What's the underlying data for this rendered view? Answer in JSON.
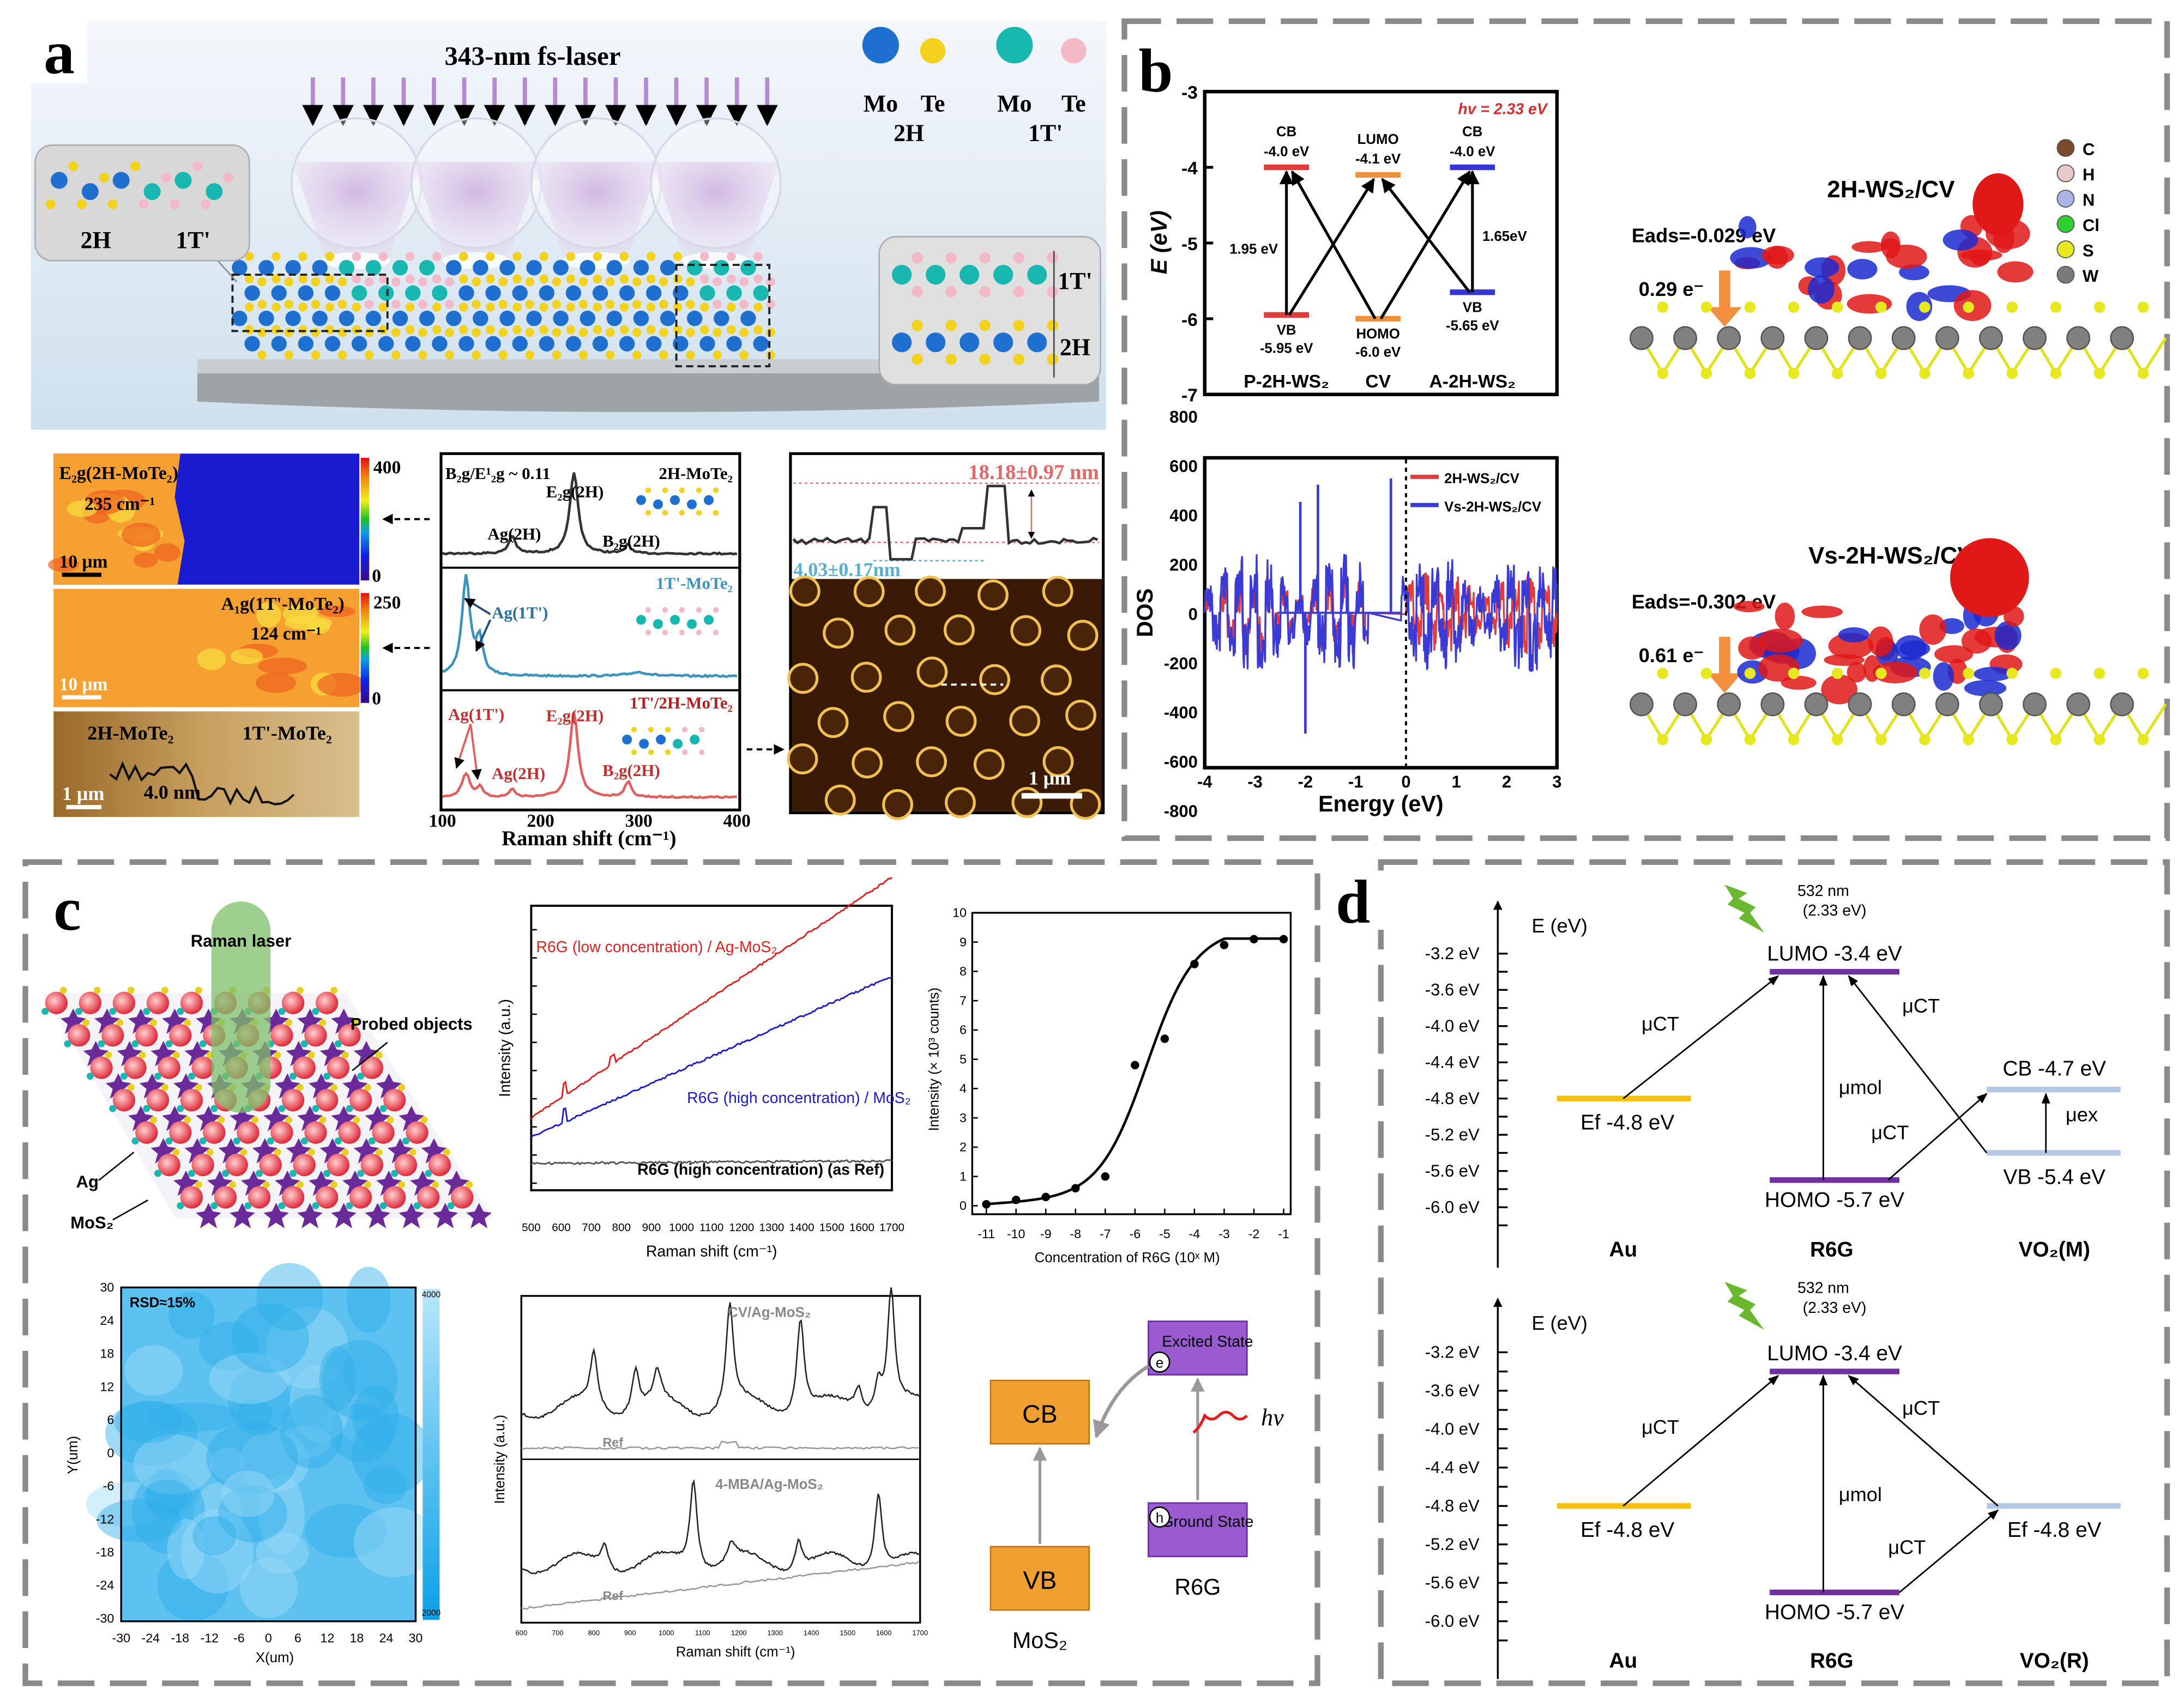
{
  "panel_a": {
    "label": "a",
    "laser_title": "343-nm fs-laser",
    "legend": [
      {
        "element": "Mo",
        "color": "#1f6fd1"
      },
      {
        "element": "Te",
        "color": "#f2d21c"
      },
      {
        "element": "Mo",
        "color": "#18b7b0"
      },
      {
        "element": "Te",
        "color": "#f3b9c6"
      }
    ],
    "legend_phase_1": "2H",
    "legend_phase_2": "1T'",
    "inset_left": {
      "left": "2H",
      "right": "1T'"
    },
    "inset_right": {
      "top": "1T'",
      "bottom": "2H"
    },
    "map_e2g": {
      "title": "E₂g(2H-MoTe₂)",
      "wavenumber": "235 cm⁻¹",
      "scale": "10 μm",
      "cbar_max": "400",
      "cbar_min": "0"
    },
    "map_a1g": {
      "title": "A₁g(1T'-MoTe₂)",
      "wavenumber": "124 cm⁻¹",
      "scale": "10 μm",
      "cbar_max": "250",
      "cbar_min": "0"
    },
    "afm_strip": {
      "left": "2H-MoTe₂",
      "right": "1T'-MoTe₂",
      "step": "4.0 nm",
      "scale": "1 μm"
    },
    "raman": {
      "ratio": "B₂g/E¹₂g ~ 0.11",
      "xlabel": "Raman shift (cm⁻¹)",
      "xticks": [
        "100",
        "200",
        "300",
        "400"
      ],
      "spectra": [
        {
          "name": "2H-MoTe₂",
          "color": "#333333",
          "peak_labels": [
            "Ag(2H)",
            "E₂g(2H)",
            "B₂g(2H)"
          ]
        },
        {
          "name": "1T'-MoTe₂",
          "color": "#3c93bd",
          "peak_labels": [
            "Ag(1T')"
          ]
        },
        {
          "name": "1T'/2H-MoTe₂",
          "color": "#e06060",
          "peak_labels": [
            "Ag(1T')",
            "Ag(2H)",
            "E₂g(2H)",
            "B₂g(2H)"
          ]
        }
      ]
    },
    "afm_profile": {
      "height_top": "18.18±0.97 nm",
      "height_bottom": "4.03±0.17nm",
      "scale": "1 μm"
    }
  },
  "panel_b": {
    "label": "b",
    "energy": {
      "hv": "hv = 2.33 eV",
      "ylabel": "E (eV)",
      "yticks": [
        "-3",
        "-4",
        "-5",
        "-6",
        "-7"
      ],
      "columns": [
        {
          "name": "P-2H-WS₂",
          "upper": "CB",
          "upper_value": "-4.0 eV",
          "lower": "VB",
          "lower_value": "-5.95 eV",
          "gap": "1.95 eV",
          "color": "#e23b3b"
        },
        {
          "name": "CV",
          "upper": "LUMO",
          "upper_value": "-4.1 eV",
          "lower": "HOMO",
          "lower_value": "-6.0 eV",
          "color": "#f0913a"
        },
        {
          "name": "A-2H-WS₂",
          "upper": "CB",
          "upper_value": "-4.0 eV",
          "lower": "VB",
          "lower_value": "-5.65 eV",
          "gap": "1.65eV",
          "color": "#3535d8"
        }
      ]
    },
    "structures": [
      {
        "title": "2H-WS₂/CV",
        "eads": "Eads=-0.029 eV",
        "charge": "0.29 e⁻"
      },
      {
        "title": "Vs-2H-WS₂/CV",
        "eads": "Eads=-0.302 eV",
        "charge": "0.61 e⁻"
      }
    ],
    "atom_legend": [
      {
        "element": "C",
        "color": "#7a4a2a"
      },
      {
        "element": "H",
        "color": "#e8c9c9"
      },
      {
        "element": "N",
        "color": "#aab4e6"
      },
      {
        "element": "Cl",
        "color": "#2fcf2f"
      },
      {
        "element": "S",
        "color": "#e8e820"
      },
      {
        "element": "W",
        "color": "#7a7a7a"
      }
    ]
  },
  "panel_c": {
    "label": "c",
    "schematic": {
      "laser": "Raman laser",
      "probed": "Probed objects",
      "ag": "Ag",
      "mos2": "MoS₂"
    },
    "scheme": {
      "cb": "CB",
      "vb": "VB",
      "mos2": "MoS₂",
      "excited": "Excited State",
      "ground": "Ground State",
      "r6g": "R6G",
      "hv": "hv",
      "e": "e",
      "h": "h"
    }
  },
  "panel_d": {
    "label": "d",
    "diagrams": [
      {
        "ylabel": "E (eV)",
        "laser": "532 nm",
        "laser_ev": "(2.33 eV)",
        "yticks": [
          "-3.2 eV",
          "-3.6 eV",
          "-4.0 eV",
          "-4.4 eV",
          "-4.8 eV",
          "-5.2 eV",
          "-5.6 eV",
          "-6.0 eV"
        ],
        "lumo": "LUMO -3.4 eV",
        "homo": "HOMO -5.7 eV",
        "au": "Ef -4.8 eV",
        "right_top": "CB -4.7 eV",
        "right_bottom": "VB -5.4 eV",
        "mu_ct": "μCT",
        "mu_mol": "μmol",
        "mu_ex": "μex",
        "categories": [
          "Au",
          "R6G",
          "VO₂(M)"
        ]
      },
      {
        "ylabel": "E (eV)",
        "laser": "532 nm",
        "laser_ev": "(2.33 eV)",
        "yticks": [
          "-3.2 eV",
          "-3.6 eV",
          "-4.0 eV",
          "-4.4 eV",
          "-4.8 eV",
          "-5.2 eV",
          "-5.6 eV",
          "-6.0 eV"
        ],
        "lumo": "LUMO -3.4 eV",
        "homo": "HOMO -5.7 eV",
        "au": "Ef -4.8 eV",
        "right_top": "Ef -4.8 eV",
        "mu_ct": "μCT",
        "mu_mol": "μmol",
        "categories": [
          "Au",
          "R6G",
          "VO₂(R)"
        ]
      }
    ]
  },
  "chart_data": [
    {
      "id": "b_energy_levels",
      "type": "diagram",
      "ylabel": "E (eV)",
      "ylim": [
        -7,
        -3
      ],
      "levels": [
        {
          "column": "P-2H-WS₂",
          "CB": -4.0,
          "VB": -5.95
        },
        {
          "column": "CV",
          "LUMO": -4.1,
          "HOMO": -6.0
        },
        {
          "column": "A-2H-WS₂",
          "CB": -4.0,
          "VB": -5.65
        }
      ]
    },
    {
      "id": "b_dos",
      "type": "line",
      "xlabel": "Energy (eV)",
      "ylabel": "DOS",
      "xlim": [
        -4,
        3
      ],
      "ylim": [
        -900,
        900
      ],
      "xticks": [
        "-4",
        "-3",
        "-2",
        "-1",
        "0",
        "1",
        "2",
        "3"
      ],
      "yticks": [
        "800",
        "600",
        "400",
        "200",
        "0",
        "-200",
        "-400",
        "-600",
        "-800"
      ],
      "legend": "top-right",
      "series": [
        {
          "name": "2H-WS₂/CV",
          "color": "#e23b3b",
          "bands": [
            [
              -4,
              -0.8
            ],
            [
              0,
              3
            ]
          ],
          "max_abs": 390
        },
        {
          "name": "Vs-2H-WS₂/CV",
          "color": "#3a3ad6",
          "bands": [
            [
              -4,
              -0.75
            ],
            [
              -0.1,
              3
            ]
          ],
          "max_abs": 540,
          "spikes": [
            [
              -2.1,
              450
            ],
            [
              -1.75,
              520
            ],
            [
              -2.0,
              -490
            ],
            [
              -0.3,
              545
            ]
          ]
        }
      ]
    },
    {
      "id": "c_raman_background",
      "type": "line",
      "xlabel": "Raman shift (cm⁻¹)",
      "ylabel": "Intensity (a.u.)",
      "xlim": [
        500,
        1700
      ],
      "xticks": [
        "500",
        "600",
        "700",
        "800",
        "900",
        "1000",
        "1100",
        "1200",
        "1300",
        "1400",
        "1500",
        "1600",
        "1700"
      ],
      "series": [
        {
          "name": "R6G (low concentration) / Ag-MoS₂",
          "color": "#e02020",
          "start": 0.12,
          "end": 1.02,
          "marker_x": 612
        },
        {
          "name": "R6G (high concentration) / MoS₂",
          "color": "#1a1ac8",
          "start": 0.05,
          "end": 0.65,
          "marker_x": 612
        },
        {
          "name": "R6G (high concentration) (as Ref)",
          "color": "#555555",
          "start": -0.05,
          "end": -0.04,
          "marker_x": 612
        }
      ]
    },
    {
      "id": "c_concentration",
      "type": "scatter",
      "xlabel": "Concentration of R6G (10ˣ M)",
      "ylabel": "Intensity (× 10³ counts)",
      "xlim": [
        -11.5,
        -0.5
      ],
      "ylim": [
        -0.25,
        10
      ],
      "xticks": [
        "-11",
        "-10",
        "-9",
        "-8",
        "-7",
        "-6",
        "-5",
        "-4",
        "-3",
        "-2",
        "-1"
      ],
      "yticks": [
        "0",
        "1",
        "2",
        "3",
        "4",
        "5",
        "6",
        "7",
        "8",
        "9",
        "10"
      ],
      "x": [
        -11,
        -10,
        -9,
        -8,
        -7,
        -6,
        -5,
        -4,
        -3,
        -2,
        -1
      ],
      "y": [
        0.05,
        0.2,
        0.3,
        0.6,
        1.0,
        4.8,
        5.7,
        8.25,
        8.9,
        9.1,
        9.1
      ]
    },
    {
      "id": "c_mapping",
      "type": "heatmap",
      "xlabel": "X(um)",
      "ylabel": "Y(um)",
      "annotation": "RSD≈15%",
      "xlim": [
        -30,
        30
      ],
      "ylim": [
        -30,
        30
      ],
      "xticks": [
        "-30",
        "-24",
        "-18",
        "-12",
        "-6",
        "0",
        "6",
        "12",
        "18",
        "24",
        "30"
      ],
      "yticks": [
        "30",
        "24",
        "18",
        "12",
        "6",
        "0",
        "-6",
        "-12",
        "-18",
        "-24",
        "-30"
      ],
      "colorbar": [
        "4000",
        "2000"
      ],
      "colors": [
        "#b8e6fa",
        "#0aa0e6"
      ]
    },
    {
      "id": "c_spectra",
      "type": "line",
      "xlabel": "Raman shift (cm⁻¹)",
      "ylabel": "Intensity (a.u.)",
      "xlim": [
        600,
        1700
      ],
      "xticks": [
        "600",
        "700",
        "800",
        "900",
        "1000",
        "1100",
        "1200",
        "1300",
        "1400",
        "1500",
        "1600",
        "1700"
      ],
      "series": [
        {
          "name": "CV/Ag-MoS₂",
          "ref": "Ref",
          "peaks": [
            [
              800,
              0.45
            ],
            [
              915,
              0.35
            ],
            [
              975,
              0.25
            ],
            [
              1175,
              0.85
            ],
            [
              1370,
              0.8
            ],
            [
              1530,
              0.2
            ],
            [
              1585,
              0.25
            ],
            [
              1620,
              1.0
            ]
          ]
        },
        {
          "name": "4-MBA/Ag-MoS₂",
          "ref": "Ref",
          "peaks": [
            [
              830,
              0.2
            ],
            [
              1075,
              0.75
            ],
            [
              1180,
              0.15
            ],
            [
              1365,
              0.25
            ],
            [
              1585,
              0.65
            ]
          ]
        }
      ]
    },
    {
      "id": "d_levels_top",
      "type": "diagram",
      "ylabel": "E (eV)",
      "LUMO": -3.4,
      "HOMO": -5.7,
      "Au_Ef": -4.8,
      "VO2M_CB": -4.7,
      "VO2M_VB": -5.4
    },
    {
      "id": "d_levels_bottom",
      "type": "diagram",
      "ylabel": "E (eV)",
      "LUMO": -3.4,
      "HOMO": -5.7,
      "Au_Ef": -4.8,
      "VO2R_Ef": -4.8
    }
  ]
}
